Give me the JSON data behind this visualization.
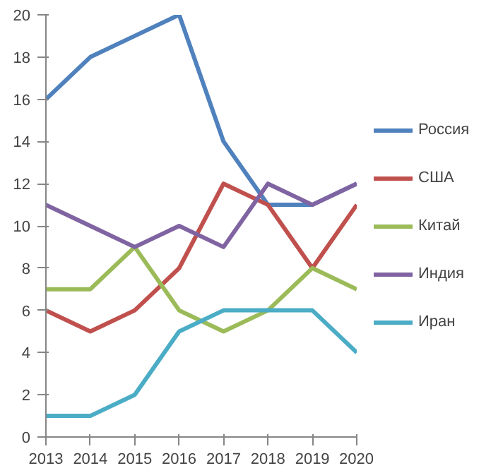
{
  "chart_data": {
    "type": "line",
    "x": [
      2013,
      2014,
      2015,
      2016,
      2017,
      2018,
      2019,
      2020
    ],
    "xlim": [
      2013,
      2020
    ],
    "xticks": [
      2013,
      2014,
      2015,
      2016,
      2017,
      2018,
      2019,
      2020
    ],
    "ylim": [
      0,
      20
    ],
    "yticks": [
      0,
      2,
      4,
      6,
      8,
      10,
      12,
      14,
      16,
      18,
      20
    ],
    "grid": false,
    "legend": "right",
    "marker": "none",
    "line_style": "solid",
    "series": [
      {
        "name": "Россия",
        "color": "#4f81bd",
        "values": [
          16,
          18,
          19,
          20,
          14,
          11,
          11,
          12
        ]
      },
      {
        "name": "США",
        "color": "#c0504d",
        "values": [
          6,
          5,
          6,
          8,
          12,
          11,
          8,
          11
        ]
      },
      {
        "name": "Китай",
        "color": "#9bbb59",
        "values": [
          7,
          7,
          9,
          6,
          5,
          6,
          8,
          7
        ]
      },
      {
        "name": "Индия",
        "color": "#8064a2",
        "values": [
          11,
          10,
          9,
          10,
          9,
          12,
          11,
          12
        ]
      },
      {
        "name": "Иран",
        "color": "#4bacc6",
        "values": [
          1,
          1,
          2,
          5,
          6,
          6,
          6,
          4
        ]
      }
    ]
  }
}
